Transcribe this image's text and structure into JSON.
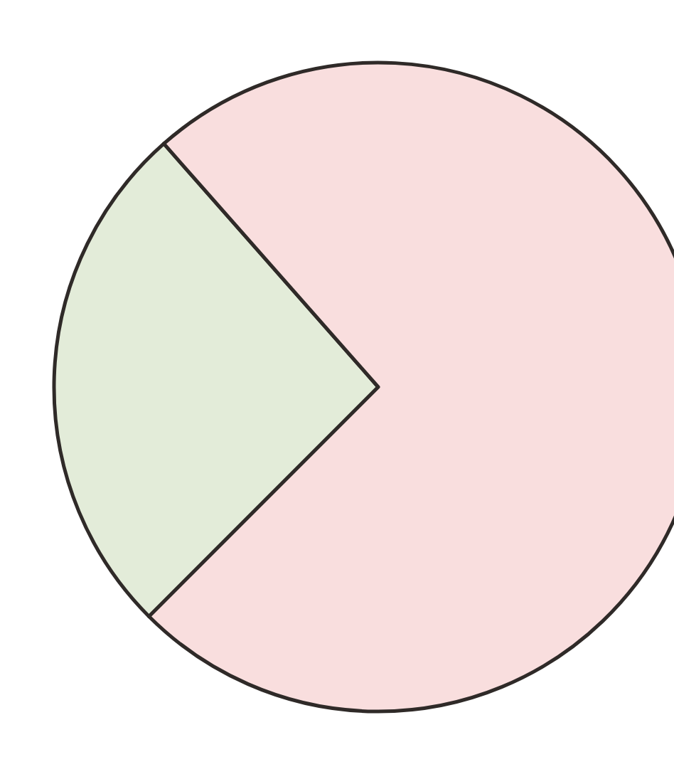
{
  "chart_data": {
    "type": "pie",
    "categories": [
      null,
      null
    ],
    "values": [
      26,
      74
    ],
    "colors": [
      "#e3ecd9",
      "#f9dede"
    ]
  }
}
